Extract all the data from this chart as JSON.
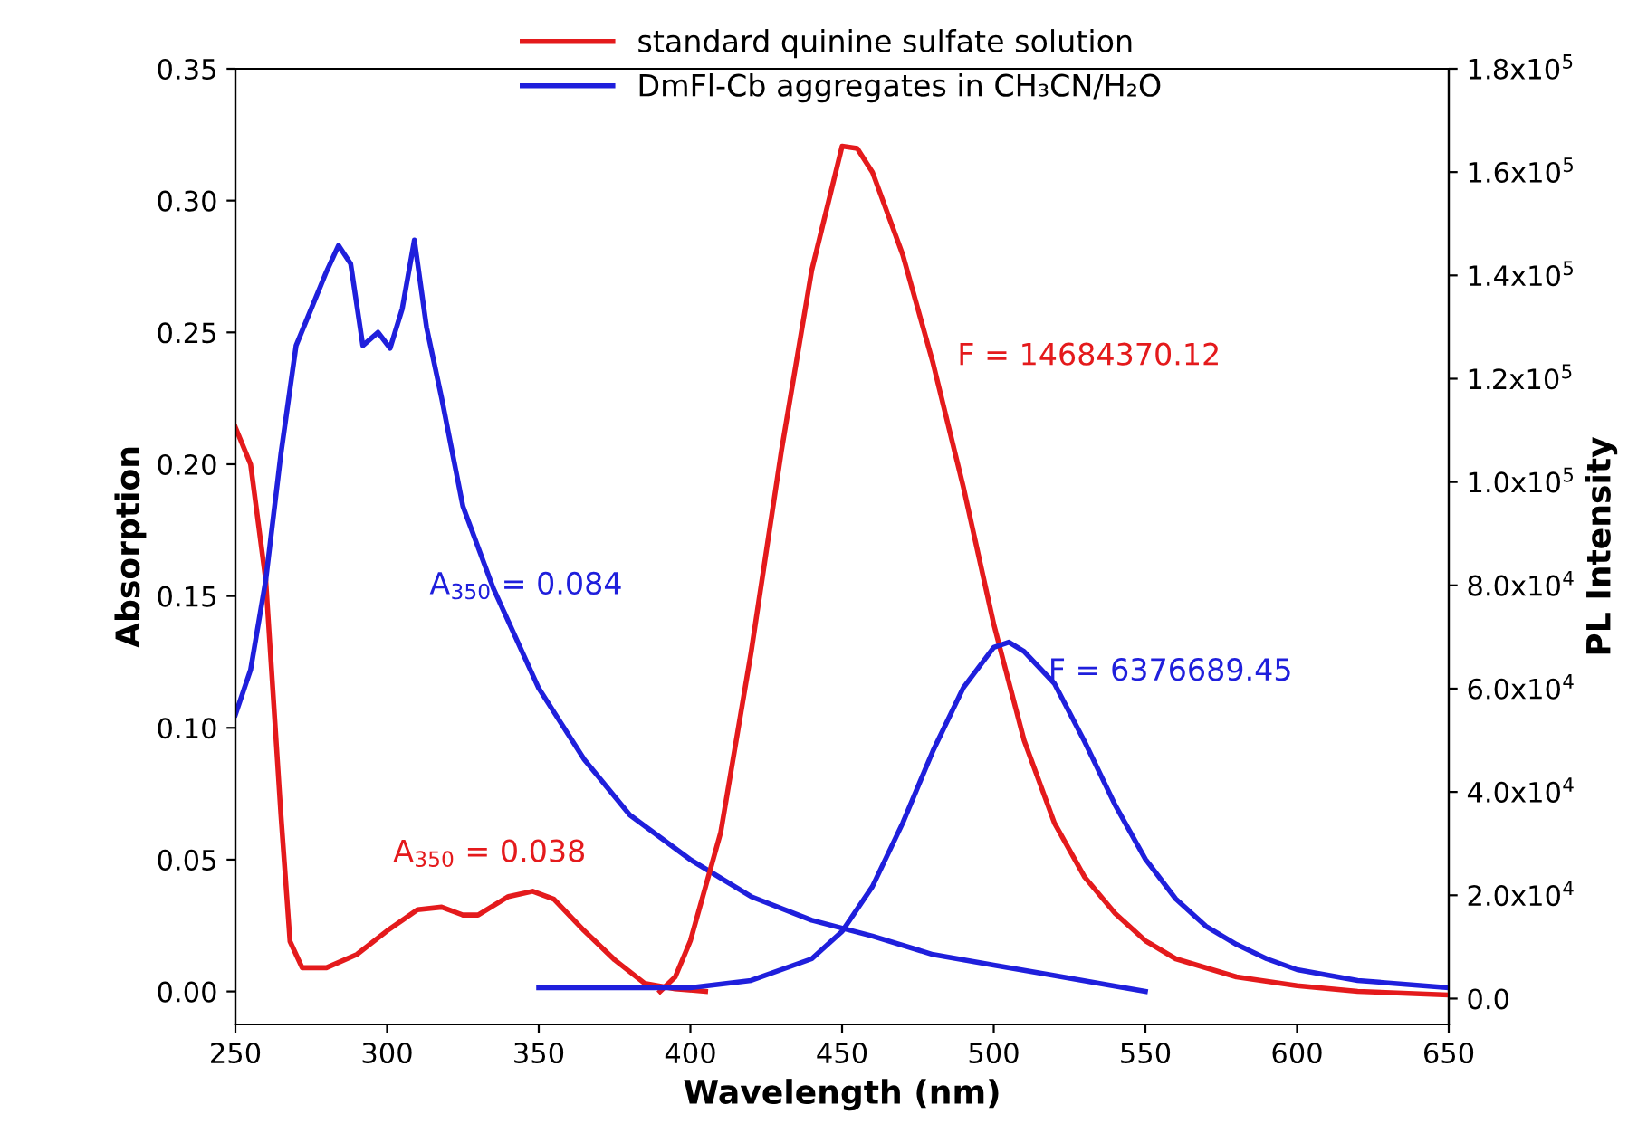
{
  "chart_data": {
    "type": "line",
    "xlabel": "Wavelength (nm)",
    "ylabel": "Absorption",
    "y2label": "PL Intensity",
    "xlim": [
      250,
      650
    ],
    "xticks": [
      250,
      300,
      350,
      400,
      450,
      500,
      550,
      600,
      650
    ],
    "ylim": [
      -0.0125,
      0.35
    ],
    "yticks": [
      {
        "value": 0,
        "label": "0.00"
      },
      {
        "value": 0.05,
        "label": "0.05"
      },
      {
        "value": 0.1,
        "label": "0.10"
      },
      {
        "value": 0.15,
        "label": "0.15"
      },
      {
        "value": 0.2,
        "label": "0.20"
      },
      {
        "value": 0.25,
        "label": "0.25"
      },
      {
        "value": 0.3,
        "label": "0.30"
      },
      {
        "value": 0.35,
        "label": "0.35"
      }
    ],
    "y2lim": [
      -5000,
      180000
    ],
    "y2ticks": [
      {
        "value": 0,
        "label": "0.0"
      },
      {
        "value": 20000,
        "label": "2.0x10$^{4}$"
      },
      {
        "value": 40000,
        "label": "4.0x10$^{4}$"
      },
      {
        "value": 60000,
        "label": "6.0x10$^{4}$"
      },
      {
        "value": 80000,
        "label": "8.0x10$^{4}$"
      },
      {
        "value": 100000,
        "label": "1.0x10$^{5}$"
      },
      {
        "value": 120000,
        "label": "1.2x10$^{5}$"
      },
      {
        "value": 140000,
        "label": "1.4x10$^{5}$"
      },
      {
        "value": 160000,
        "label": "1.6x10$^{5}$"
      },
      {
        "value": 180000,
        "label": "1.8x10$^{5}$"
      }
    ],
    "grid": false,
    "legend": "top",
    "marker": "none",
    "line_style": "solid",
    "series": [
      {
        "name": "standard quinine sulfate solution",
        "color": "#e41a1c",
        "x": [
          250,
          255,
          260,
          265,
          268,
          272,
          280,
          290,
          300,
          310,
          318,
          325,
          330,
          340,
          348,
          355,
          365,
          375,
          385,
          395,
          405
        ],
        "values": [
          0.214,
          0.2,
          0.156,
          0.067,
          0.019,
          0.009,
          0.009,
          0.014,
          0.023,
          0.031,
          0.032,
          0.029,
          0.029,
          0.036,
          0.038,
          0.035,
          0.023,
          0.012,
          0.003,
          0.001,
          0.0
        ]
      },
      {
        "color": "#e41a1c",
        "axis": "y2",
        "x": [
          390,
          395,
          400,
          410,
          420,
          430,
          440,
          450,
          455,
          460,
          470,
          480,
          490,
          500,
          510,
          520,
          530,
          540,
          550,
          560,
          580,
          600,
          620,
          650
        ],
        "values": [
          1400,
          4200,
          11200,
          32200,
          67000,
          106000,
          141000,
          165000,
          164600,
          160000,
          144000,
          123000,
          99000,
          72500,
          50000,
          34000,
          23500,
          16500,
          11200,
          7700,
          4200,
          2500,
          1400,
          700
        ]
      },
      {
        "name": "DmFl-Cb aggregates in CH₃CN/H₂O",
        "color": "#1f1fdc",
        "x": [
          250,
          255,
          260,
          265,
          270,
          275,
          280,
          284,
          288,
          292,
          297,
          301,
          305,
          309,
          313,
          318,
          325,
          335,
          350,
          365,
          380,
          400,
          420,
          440,
          460,
          480,
          500,
          520,
          540,
          550
        ],
        "values": [
          0.105,
          0.122,
          0.156,
          0.204,
          0.245,
          0.259,
          0.273,
          0.283,
          0.276,
          0.245,
          0.25,
          0.244,
          0.259,
          0.285,
          0.252,
          0.225,
          0.184,
          0.153,
          0.115,
          0.088,
          0.067,
          0.05,
          0.036,
          0.027,
          0.021,
          0.014,
          0.01,
          0.006,
          0.002,
          0.0
        ]
      },
      {
        "color": "#1f1fdc",
        "axis": "y2",
        "x": [
          350,
          400,
          420,
          440,
          450,
          460,
          470,
          480,
          490,
          500,
          505,
          510,
          520,
          530,
          540,
          550,
          560,
          570,
          580,
          590,
          600,
          620,
          650
        ],
        "values": [
          2100,
          2100,
          3500,
          7700,
          13000,
          21700,
          34000,
          48000,
          60200,
          68000,
          69000,
          67200,
          61000,
          49700,
          37500,
          27000,
          19300,
          14000,
          10500,
          7700,
          5600,
          3500,
          2100
        ]
      }
    ],
    "annotations": [
      "A$_{350}$ = 0.038",
      "F = 14684370.12",
      "A$_{350}$ = 0.084",
      "F = 6376689.45"
    ]
  }
}
